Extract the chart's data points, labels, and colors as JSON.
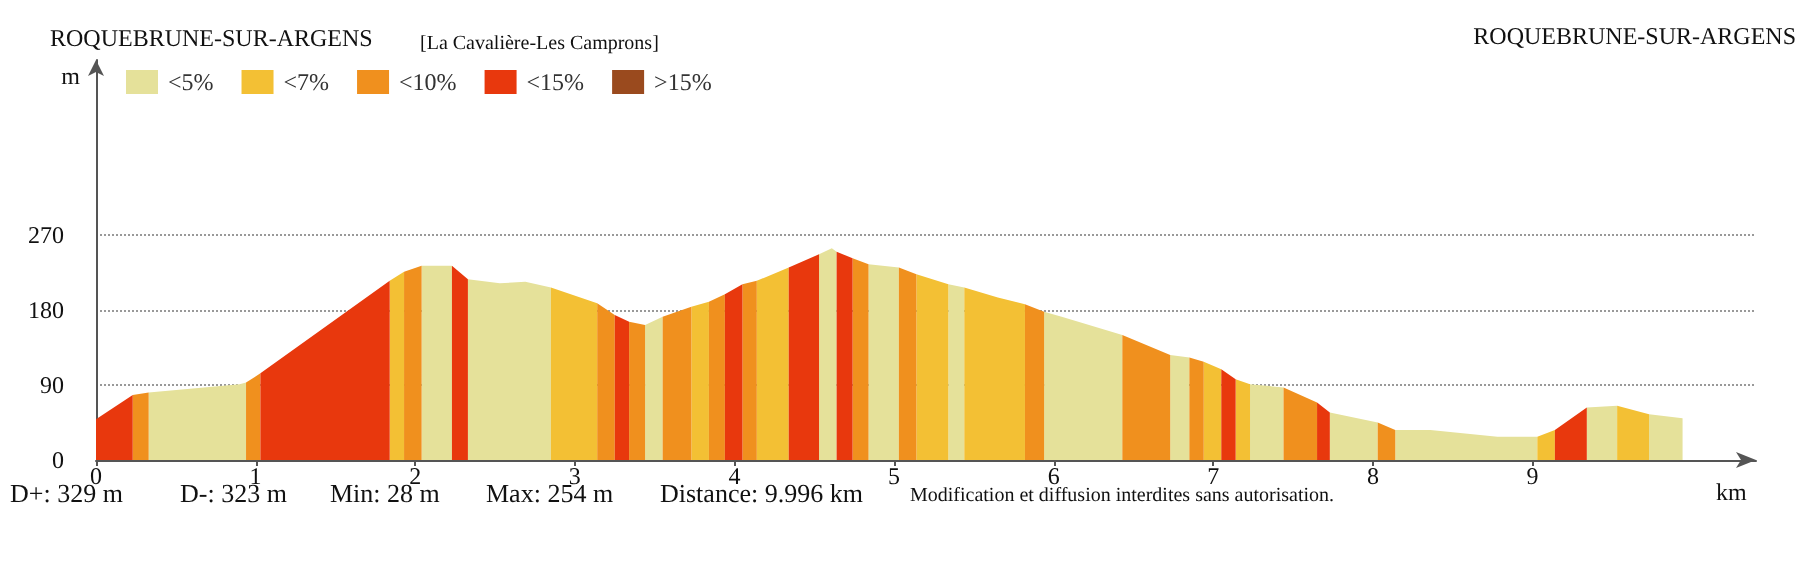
{
  "chart_data": {
    "type": "area",
    "title": "ROQUEBRUNE-SUR-ARGENS",
    "subtitle": "[La Cavalière-Les Camprons]",
    "xlabel": "km",
    "ylabel": "m",
    "annotations": [
      "ROQUEBRUNE-SUR-ARGENS",
      "D+: 329 m",
      "D-: 323 m",
      "Min: 28 m",
      "Max: 254 m",
      "Distance: 9.996 km",
      "Modification et diffusion interdites sans autorisation."
    ],
    "xlim": [
      0,
      10.4
    ],
    "xticks": [
      0,
      1,
      2,
      3,
      4,
      5,
      6,
      7,
      8,
      9
    ],
    "ylim": [
      0,
      480
    ],
    "yticks": [
      0,
      90,
      180,
      270
    ],
    "grid": "y",
    "legend": "top left",
    "series": [
      {
        "name": "<5%",
        "color": "#e5e19a",
        "x": [
          0.33,
          0.9,
          0.94,
          null,
          2.04,
          2.23,
          null,
          2.33,
          2.53,
          2.69,
          2.85,
          null,
          3.44,
          3.55,
          null,
          4.53,
          4.61,
          4.64,
          null,
          4.84,
          5.03,
          null,
          5.34,
          5.44,
          null,
          5.94,
          6.05,
          6.43,
          null,
          6.73,
          6.85,
          null,
          7.23,
          7.44,
          null,
          7.73,
          8.03,
          null,
          8.14,
          8.36,
          8.78,
          9.03,
          null,
          9.34,
          9.53,
          null,
          9.73,
          9.94
        ],
        "values": [
          81,
          91,
          93,
          null,
          233,
          233,
          null,
          217,
          212,
          214,
          207,
          null,
          162,
          172,
          null,
          247,
          254,
          250,
          null,
          235,
          231,
          null,
          211,
          207,
          null,
          178,
          172,
          150,
          null,
          126,
          123,
          null,
          91,
          87,
          null,
          57,
          45,
          null,
          36,
          36,
          28,
          28,
          null,
          63,
          65,
          null,
          55,
          50
        ]
      },
      {
        "name": "<7%",
        "color": "#f3c034",
        "x": [
          1.84,
          1.93,
          null,
          2.85,
          3.14,
          null,
          3.73,
          3.84,
          null,
          4.14,
          4.34,
          null,
          5.14,
          5.34,
          null,
          5.44,
          5.65,
          5.82,
          null,
          6.94,
          7.05,
          null,
          7.14,
          7.23,
          null,
          9.03,
          9.14,
          null,
          9.53,
          9.73
        ],
        "values": [
          215,
          226,
          null,
          207,
          188,
          null,
          184,
          190,
          null,
          215,
          231,
          null,
          223,
          211,
          null,
          207,
          195,
          187,
          null,
          118,
          109,
          null,
          97,
          91,
          null,
          28,
          36,
          null,
          65,
          55
        ]
      },
      {
        "name": "<10%",
        "color": "#f0901e",
        "x": [
          0.23,
          0.33,
          null,
          0.94,
          1.03,
          null,
          1.93,
          2.04,
          null,
          3.14,
          3.25,
          null,
          3.34,
          3.44,
          null,
          3.55,
          3.73,
          null,
          3.84,
          3.94,
          null,
          4.05,
          4.14,
          null,
          4.74,
          4.84,
          null,
          5.03,
          5.14,
          null,
          5.82,
          5.94,
          null,
          6.43,
          6.73,
          null,
          6.85,
          6.94,
          null,
          7.44,
          7.65,
          null,
          8.03,
          8.14
        ],
        "values": [
          78,
          81,
          null,
          93,
          104,
          null,
          226,
          233,
          null,
          188,
          174,
          null,
          166,
          162,
          null,
          172,
          184,
          null,
          190,
          199,
          null,
          211,
          215,
          null,
          242,
          235,
          null,
          231,
          223,
          null,
          187,
          178,
          null,
          150,
          126,
          null,
          123,
          118,
          null,
          87,
          69,
          null,
          45,
          36
        ]
      },
      {
        "name": "<15%",
        "color": "#e8380d",
        "x": [
          0,
          0.23,
          null,
          1.03,
          1.84,
          null,
          2.23,
          2.33,
          null,
          3.25,
          3.34,
          null,
          3.94,
          4.05,
          null,
          4.34,
          4.53,
          null,
          4.64,
          4.74,
          null,
          7.05,
          7.14,
          null,
          7.65,
          7.73,
          null,
          9.14,
          9.34
        ],
        "values": [
          49,
          78,
          null,
          104,
          215,
          null,
          233,
          217,
          null,
          174,
          166,
          null,
          199,
          211,
          null,
          231,
          247,
          null,
          250,
          242,
          null,
          109,
          97,
          null,
          69,
          57,
          null,
          36,
          63
        ]
      },
      {
        "name": ">15%",
        "color": "#9a4a1e"
      }
    ]
  }
}
